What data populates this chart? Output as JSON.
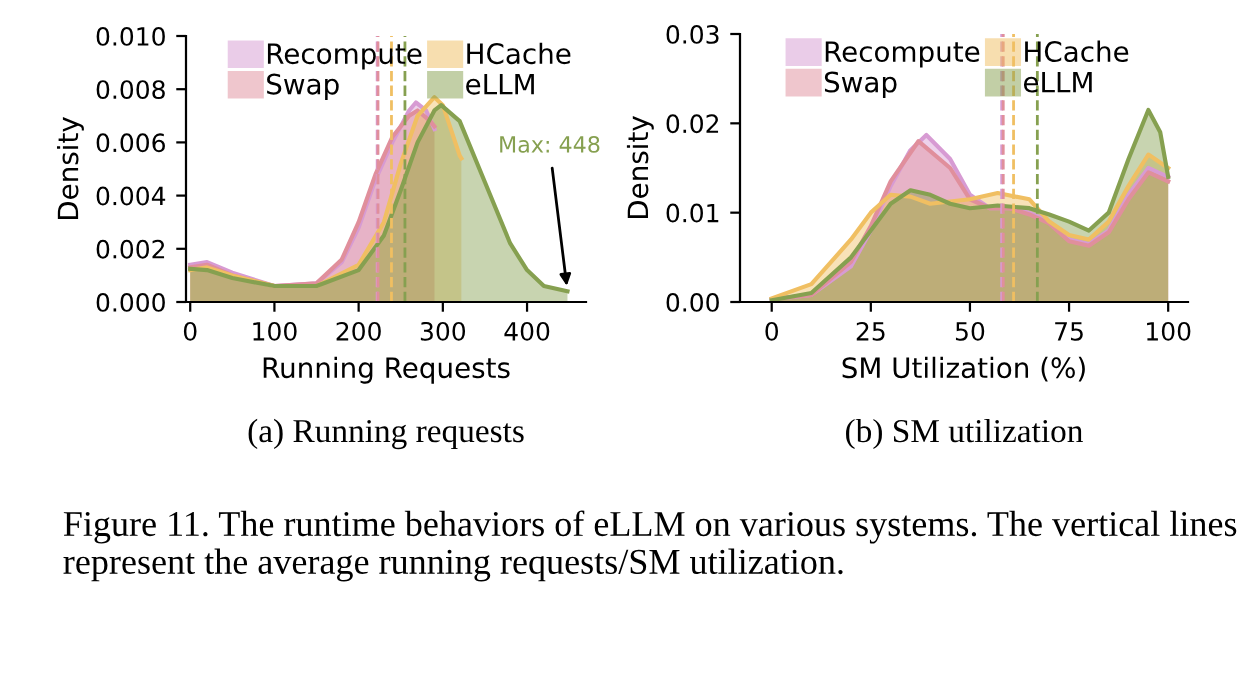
{
  "chart_data": [
    {
      "type": "area",
      "xlabel": "Running Requests",
      "ylabel": "Density",
      "xlim": [
        -5,
        470
      ],
      "xticks": [
        0,
        100,
        200,
        300,
        400
      ],
      "ylim": [
        0,
        0.01
      ],
      "yticks": [
        {
          "value": 0,
          "label": "0.000"
        },
        {
          "value": 0.002,
          "label": "0.002"
        },
        {
          "value": 0.004,
          "label": "0.004"
        },
        {
          "value": 0.006,
          "label": "0.006"
        },
        {
          "value": 0.008,
          "label": "0.008"
        },
        {
          "value": 0.01,
          "label": "0.010"
        }
      ],
      "legend": "top left",
      "grid": false,
      "series": [
        {
          "name": "Recompute",
          "color": "#d79bd3",
          "x": [
            0,
            20,
            50,
            100,
            150,
            180,
            200,
            220,
            240,
            260,
            268,
            280,
            290
          ],
          "values": [
            0.0014,
            0.0015,
            0.0011,
            0.0006,
            0.0007,
            0.0015,
            0.0028,
            0.0046,
            0.006,
            0.0072,
            0.0075,
            0.0072,
            0.0065
          ]
        },
        {
          "name": "Swap",
          "color": "#e08f9c",
          "x": [
            0,
            20,
            50,
            100,
            150,
            180,
            200,
            220,
            240,
            260,
            270,
            285,
            290
          ],
          "values": [
            0.0013,
            0.0014,
            0.001,
            0.0006,
            0.0007,
            0.0016,
            0.003,
            0.0048,
            0.0062,
            0.007,
            0.0072,
            0.0068,
            0.0066
          ]
        },
        {
          "name": "HCache",
          "color": "#f0bf62",
          "x": [
            0,
            20,
            50,
            100,
            150,
            200,
            230,
            250,
            270,
            290,
            300,
            320,
            322
          ],
          "values": [
            0.0012,
            0.0013,
            0.001,
            0.0006,
            0.0006,
            0.0014,
            0.003,
            0.0052,
            0.007,
            0.0077,
            0.0074,
            0.0055,
            0.0054
          ]
        },
        {
          "name": "eLLM",
          "color": "#86a050",
          "x": [
            0,
            20,
            50,
            100,
            150,
            200,
            230,
            250,
            270,
            290,
            298,
            320,
            350,
            380,
            400,
            420,
            448
          ],
          "values": [
            0.00125,
            0.0012,
            0.0009,
            0.0006,
            0.0006,
            0.0012,
            0.0025,
            0.0042,
            0.006,
            0.0072,
            0.0074,
            0.0068,
            0.0045,
            0.0022,
            0.0012,
            0.0006,
            0.0004
          ]
        }
      ],
      "ref_lines": [
        {
          "axis": "x",
          "value": 222,
          "color": "#d79bd3",
          "line_style": "dashed"
        },
        {
          "axis": "x",
          "value": 223,
          "color": "#e08f9c",
          "line_style": "dashed"
        },
        {
          "axis": "x",
          "value": 239,
          "color": "#f0bf62",
          "line_style": "dashed"
        },
        {
          "axis": "x",
          "value": 255,
          "color": "#86a050",
          "line_style": "dashed"
        }
      ],
      "annotations": [
        {
          "text": "Max: 448",
          "x": 448,
          "y": 0.0004
        },
        "(a) Running requests"
      ]
    },
    {
      "type": "area",
      "xlabel": "SM Utilization (%)",
      "ylabel": "Density",
      "xlim": [
        -8,
        105
      ],
      "xticks": [
        0,
        25,
        50,
        75,
        100
      ],
      "ylim": [
        0,
        0.03
      ],
      "yticks": [
        {
          "value": 0,
          "label": "0.00"
        },
        {
          "value": 0.01,
          "label": "0.01"
        },
        {
          "value": 0.02,
          "label": "0.02"
        },
        {
          "value": 0.03,
          "label": "0.03"
        }
      ],
      "legend": "top left",
      "grid": false,
      "series": [
        {
          "name": "Recompute",
          "color": "#d79bd3",
          "x": [
            0,
            10,
            20,
            25,
            30,
            35,
            39,
            45,
            50,
            55,
            60,
            65,
            70,
            75,
            80,
            85,
            90,
            95,
            100
          ],
          "values": [
            0.0003,
            0.0008,
            0.004,
            0.008,
            0.013,
            0.017,
            0.0187,
            0.016,
            0.012,
            0.0105,
            0.0105,
            0.01,
            0.009,
            0.007,
            0.0065,
            0.008,
            0.012,
            0.015,
            0.014
          ]
        },
        {
          "name": "Swap",
          "color": "#e08f9c",
          "x": [
            0,
            10,
            20,
            25,
            30,
            37,
            45,
            50,
            55,
            60,
            65,
            70,
            75,
            80,
            85,
            90,
            95,
            100
          ],
          "values": [
            0.0003,
            0.0008,
            0.0045,
            0.0085,
            0.0135,
            0.018,
            0.015,
            0.0115,
            0.0105,
            0.0105,
            0.0098,
            0.0088,
            0.0068,
            0.0063,
            0.0078,
            0.0115,
            0.0145,
            0.0135
          ]
        },
        {
          "name": "HCache",
          "color": "#f0bf62",
          "x": [
            0,
            10,
            20,
            25,
            30,
            35,
            40,
            50,
            57,
            65,
            70,
            75,
            80,
            85,
            90,
            95,
            100
          ],
          "values": [
            0.0004,
            0.002,
            0.007,
            0.01,
            0.012,
            0.0118,
            0.011,
            0.0115,
            0.0122,
            0.0115,
            0.009,
            0.0075,
            0.007,
            0.009,
            0.013,
            0.0165,
            0.015
          ]
        },
        {
          "name": "eLLM",
          "color": "#86a050",
          "x": [
            0,
            10,
            20,
            25,
            30,
            35,
            40,
            45,
            50,
            57,
            65,
            70,
            75,
            80,
            85,
            90,
            95,
            98,
            100
          ],
          "values": [
            0.0002,
            0.001,
            0.005,
            0.008,
            0.011,
            0.0125,
            0.012,
            0.011,
            0.0105,
            0.0108,
            0.0105,
            0.0098,
            0.009,
            0.008,
            0.01,
            0.016,
            0.0215,
            0.019,
            0.014
          ]
        }
      ],
      "ref_lines": [
        {
          "axis": "x",
          "value": 58,
          "color": "#d79bd3",
          "line_style": "dashed"
        },
        {
          "axis": "x",
          "value": 58.4,
          "color": "#e08f9c",
          "line_style": "dashed"
        },
        {
          "axis": "x",
          "value": 61,
          "color": "#f0bf62",
          "line_style": "dashed"
        },
        {
          "axis": "x",
          "value": 67,
          "color": "#86a050",
          "line_style": "dashed"
        }
      ],
      "annotations": [
        "(b) SM utilization",
        "Figure 11. The runtime behaviors of eLLM on various systems. The vertical lines represent the average running requests/SM utilization."
      ]
    }
  ]
}
